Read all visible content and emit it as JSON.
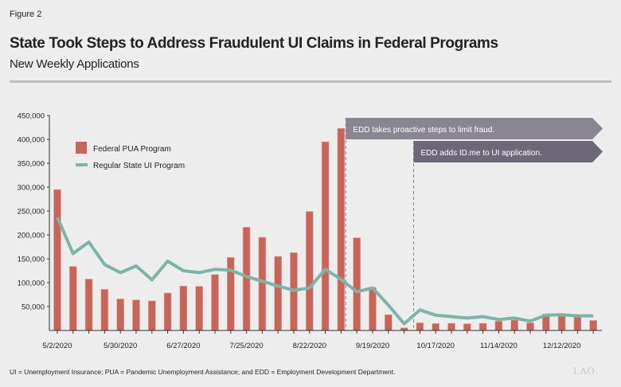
{
  "figure_label": "Figure 2",
  "footnote": "UI = Unemployment Insurance; PUA = Pandemic Unemployment Assistance; and EDD = Employment Development Department.",
  "logo": "LAO",
  "colors": {
    "bar": "#c8655a",
    "line": "#7db4a9",
    "banner1": "#8a8592",
    "banner2": "#6d6777",
    "background": "#ecedec"
  },
  "chart_data": {
    "type": "bar+line",
    "title": "State Took Steps to Address Fraudulent UI Claims in Federal Programs",
    "subtitle": "New Weekly Applications",
    "xlabel": "",
    "ylabel": "",
    "ylim": [
      0,
      450000
    ],
    "yticks": [
      "450,000",
      "400,000",
      "350,000",
      "300,000",
      "250,000",
      "200,000",
      "150,000",
      "100,000",
      "50,000"
    ],
    "ytick_values": [
      450000,
      400000,
      350000,
      300000,
      250000,
      200000,
      150000,
      100000,
      50000
    ],
    "xtick_labels": [
      "5/2/2020",
      "5/30/2020",
      "6/27/2020",
      "7/25/2020",
      "8/22/2020",
      "9/19/2020",
      "10/17/2020",
      "11/14/2020",
      "12/12/2020"
    ],
    "xtick_every_weeks": 4,
    "weeks": [
      "5/2/2020",
      "5/9/2020",
      "5/16/2020",
      "5/23/2020",
      "5/30/2020",
      "6/6/2020",
      "6/13/2020",
      "6/20/2020",
      "6/27/2020",
      "7/4/2020",
      "7/11/2020",
      "7/18/2020",
      "7/25/2020",
      "8/1/2020",
      "8/8/2020",
      "8/15/2020",
      "8/22/2020",
      "8/29/2020",
      "9/5/2020",
      "9/12/2020",
      "9/19/2020",
      "9/26/2020",
      "10/3/2020",
      "10/10/2020",
      "10/17/2020",
      "10/24/2020",
      "10/31/2020",
      "11/7/2020",
      "11/14/2020",
      "11/21/2020",
      "11/28/2020",
      "12/5/2020",
      "12/12/2020",
      "12/19/2020",
      "12/26/2020"
    ],
    "legend_position": "top-left",
    "grid": false,
    "series": [
      {
        "name": "Federal PUA Program",
        "type": "bar",
        "values": [
          295000,
          134000,
          107500,
          86000,
          66000,
          64000,
          62000,
          78500,
          93000,
          92500,
          117000,
          153000,
          216000,
          195000,
          155000,
          163000,
          249000,
          395000,
          423000,
          194000,
          90000,
          33000,
          5500,
          16000,
          14500,
          15000,
          14000,
          15000,
          19500,
          21700,
          16000,
          34500,
          30600,
          28000,
          21000
        ]
      },
      {
        "name": "Regular State UI Program",
        "type": "line",
        "values": [
          237000,
          161000,
          185000,
          138000,
          121000,
          135000,
          106000,
          145000,
          125000,
          121000,
          128000,
          126000,
          113000,
          103000,
          93000,
          84000,
          89000,
          128000,
          107000,
          81000,
          89000,
          53000,
          14000,
          43000,
          32000,
          29000,
          26000,
          29000,
          23000,
          26000,
          19500,
          32000,
          33000,
          30600,
          30600
        ]
      }
    ],
    "annotations": [
      {
        "text": "EDD takes proactive steps to limit fraud.",
        "after_week": "9/5/2020"
      },
      {
        "text": "EDD adds ID.me to UI application.",
        "after_week": "10/3/2020"
      }
    ]
  }
}
